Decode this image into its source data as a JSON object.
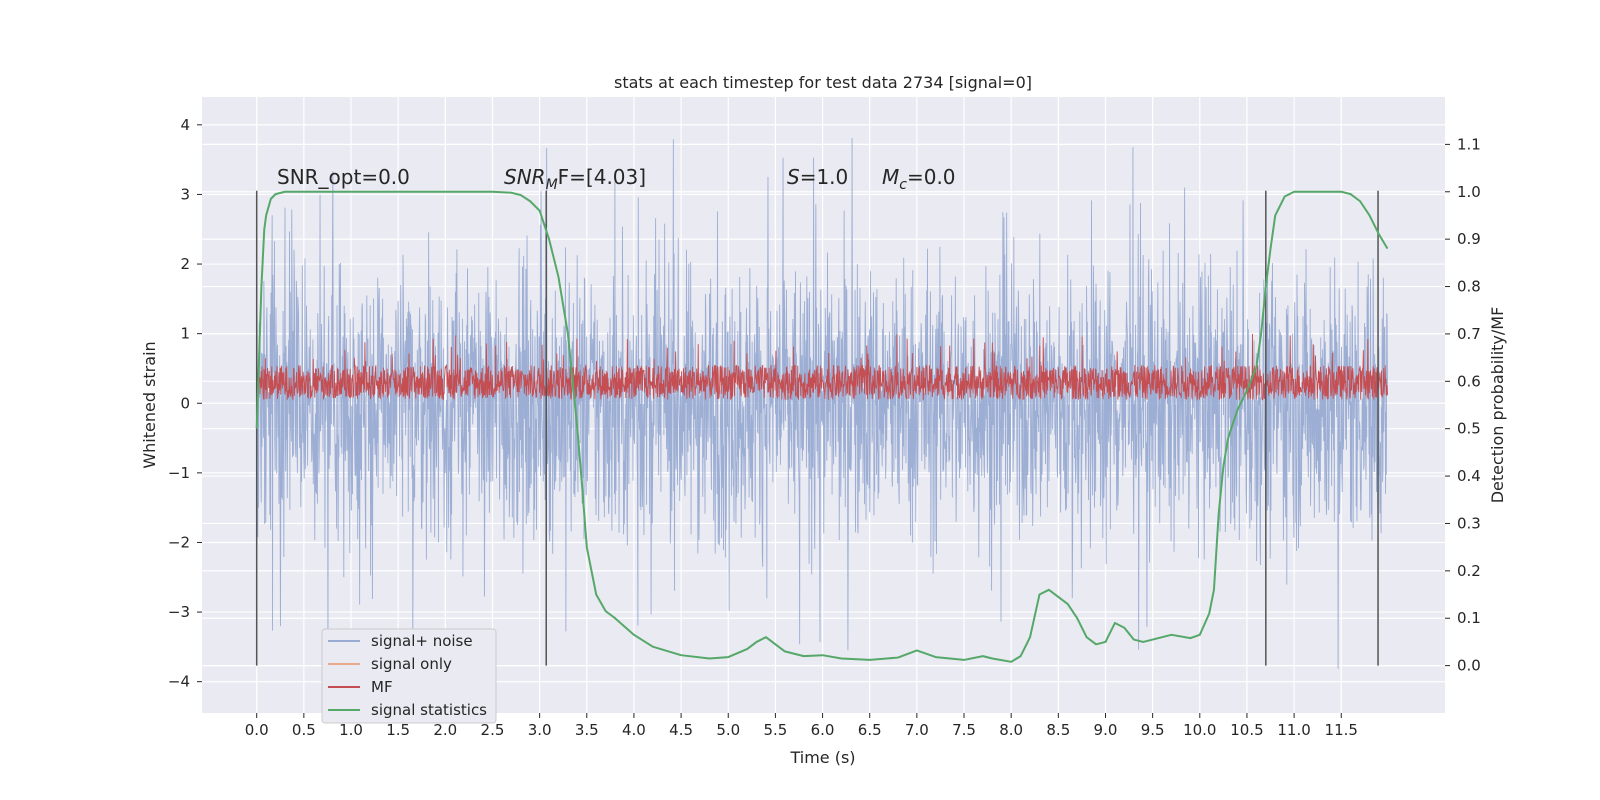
{
  "chart_data": {
    "type": "line",
    "title": "stats at each timestep for test data 2734 [signal=0]",
    "xlabel": "Time (s)",
    "ylabel": "Whitened strain",
    "y2label": "Detection probability/MF",
    "xlim": [
      -0.58,
      12.6
    ],
    "ylim": [
      -4.45,
      4.4
    ],
    "y2lim": [
      -0.1,
      1.2
    ],
    "x_ticks": [
      "0.0",
      "0.5",
      "1.0",
      "1.5",
      "2.0",
      "2.5",
      "3.0",
      "3.5",
      "4.0",
      "4.5",
      "5.0",
      "5.5",
      "6.0",
      "6.5",
      "7.0",
      "7.5",
      "8.0",
      "8.5",
      "9.0",
      "9.5",
      "10.0",
      "10.5",
      "11.0",
      "11.5"
    ],
    "y_ticks": [
      "−4",
      "−3",
      "−2",
      "−1",
      "0",
      "1",
      "2",
      "3",
      "4"
    ],
    "y2_ticks": [
      "0.0",
      "0.1",
      "0.2",
      "0.3",
      "0.4",
      "0.5",
      "0.6",
      "0.7",
      "0.8",
      "0.9",
      "1.0",
      "1.1"
    ],
    "grid": true,
    "legend_position": "lower-left",
    "colors": {
      "plot_bg": "#eaeaf2",
      "grid": "#ffffff",
      "noise": "#98abd2",
      "signal_only": "#e8a88a",
      "mf": "#c44e52",
      "stat": "#55a868",
      "vline": "#555555"
    },
    "series": [
      {
        "name": "signal+ noise",
        "x_range": [
          0.0,
          11.99
        ],
        "envelope_typical": [
          -1.6,
          1.6
        ],
        "extremes": [
          -4.1,
          4.0
        ]
      },
      {
        "name": "signal only",
        "values": []
      },
      {
        "name": "MF",
        "x_range": [
          0.0,
          11.99
        ],
        "band": [
          0.05,
          0.55
        ],
        "spike_max": 1.0
      },
      {
        "name": "signal statistics",
        "x": [
          0.0,
          0.02,
          0.05,
          0.08,
          0.1,
          0.15,
          0.2,
          0.3,
          0.5,
          1.0,
          2.0,
          2.5,
          2.7,
          2.8,
          2.9,
          3.0,
          3.1,
          3.2,
          3.3,
          3.35,
          3.4,
          3.45,
          3.5,
          3.6,
          3.7,
          3.8,
          4.0,
          4.2,
          4.5,
          4.8,
          5.0,
          5.2,
          5.3,
          5.4,
          5.5,
          5.6,
          5.8,
          6.0,
          6.2,
          6.5,
          6.8,
          7.0,
          7.2,
          7.5,
          7.7,
          7.8,
          8.0,
          8.1,
          8.2,
          8.3,
          8.4,
          8.5,
          8.6,
          8.7,
          8.8,
          8.9,
          9.0,
          9.1,
          9.2,
          9.3,
          9.4,
          9.5,
          9.7,
          9.9,
          10.0,
          10.1,
          10.15,
          10.2,
          10.25,
          10.3,
          10.4,
          10.5,
          10.6,
          10.65,
          10.7,
          10.75,
          10.8,
          10.9,
          11.0,
          11.2,
          11.5,
          11.6,
          11.7,
          11.8,
          11.9,
          11.99
        ],
        "values": [
          0.5,
          0.62,
          0.8,
          0.92,
          0.95,
          0.985,
          0.995,
          1.0,
          1.0,
          1.0,
          1.0,
          1.0,
          0.998,
          0.993,
          0.98,
          0.96,
          0.9,
          0.82,
          0.7,
          0.6,
          0.5,
          0.38,
          0.25,
          0.15,
          0.115,
          0.1,
          0.065,
          0.04,
          0.022,
          0.015,
          0.018,
          0.035,
          0.05,
          0.06,
          0.045,
          0.03,
          0.02,
          0.022,
          0.015,
          0.012,
          0.017,
          0.032,
          0.018,
          0.012,
          0.02,
          0.015,
          0.008,
          0.02,
          0.06,
          0.15,
          0.16,
          0.145,
          0.13,
          0.1,
          0.06,
          0.045,
          0.05,
          0.09,
          0.08,
          0.055,
          0.05,
          0.055,
          0.065,
          0.058,
          0.065,
          0.11,
          0.16,
          0.32,
          0.42,
          0.48,
          0.54,
          0.58,
          0.63,
          0.7,
          0.8,
          0.88,
          0.95,
          0.99,
          1.0,
          1.0,
          1.0,
          0.995,
          0.98,
          0.95,
          0.91,
          0.88
        ]
      }
    ],
    "vlines": [
      0.0,
      3.07,
      10.7,
      11.89
    ],
    "annotations": [
      {
        "text": "SNR_opt=0.0"
      },
      {
        "main": "SNR",
        "sub": "M",
        "rest": "F=[4.03]"
      },
      {
        "main": "S",
        "rest": "=1.0"
      },
      {
        "main": "M",
        "sub": "c",
        "rest": "=0.0"
      }
    ]
  }
}
